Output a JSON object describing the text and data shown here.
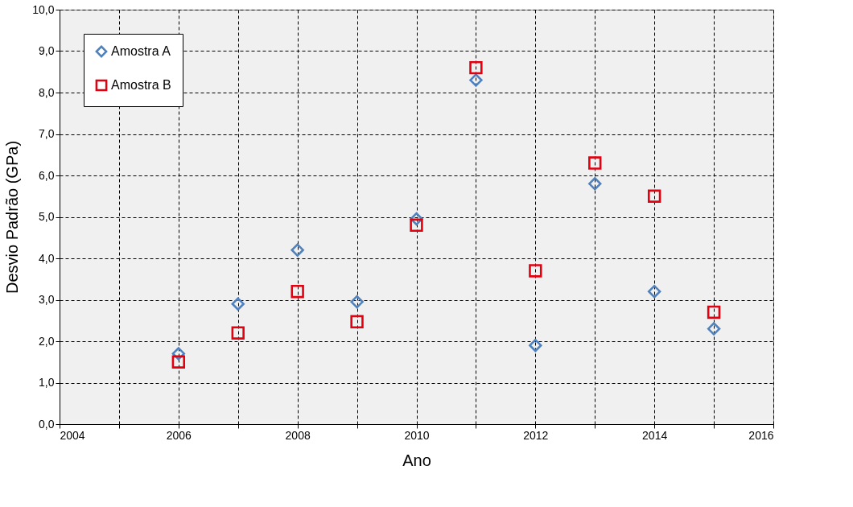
{
  "chart_data": {
    "type": "scatter",
    "xlabel": "Ano",
    "ylabel": "Desvio  Padrão  (GPa)",
    "x": [
      2006,
      2007,
      2008,
      2009,
      2010,
      2011,
      2012,
      2013,
      2014,
      2015
    ],
    "series": [
      {
        "name": "Amostra A",
        "color": "#4f81bd",
        "marker": "diamond",
        "values": [
          1.7,
          2.9,
          4.2,
          2.95,
          4.95,
          8.3,
          1.9,
          5.8,
          3.2,
          2.3
        ]
      },
      {
        "name": "Amostra B",
        "color": "#e3000f",
        "marker": "square",
        "values": [
          1.5,
          2.2,
          3.2,
          2.47,
          4.8,
          8.6,
          3.7,
          6.3,
          5.5,
          2.7
        ]
      }
    ],
    "xlim": [
      2004,
      2016
    ],
    "xticks": [
      2004,
      {
        "value": 2005,
        "label": null
      },
      2006,
      {
        "value": 2007,
        "label": null
      },
      2008,
      {
        "value": 2009,
        "label": null
      },
      2010,
      {
        "value": 2011,
        "label": null
      },
      2012,
      {
        "value": 2013,
        "label": null
      },
      2014,
      {
        "value": 2015,
        "label": null
      },
      2016
    ],
    "ylim": [
      0,
      10
    ],
    "yticks": [
      {
        "value": 0,
        "label": "0,0"
      },
      {
        "value": 1,
        "label": "1,0"
      },
      {
        "value": 2,
        "label": "2,0"
      },
      {
        "value": 3,
        "label": "3,0"
      },
      {
        "value": 4,
        "label": "4,0"
      },
      {
        "value": 5,
        "label": "5,0"
      },
      {
        "value": 6,
        "label": "6,0"
      },
      {
        "value": 7,
        "label": "7,0"
      },
      {
        "value": 8,
        "label": "8,0"
      },
      {
        "value": 9,
        "label": "9,0"
      },
      {
        "value": 10,
        "label": "10,0"
      }
    ],
    "grid": true,
    "legend": "top left"
  }
}
